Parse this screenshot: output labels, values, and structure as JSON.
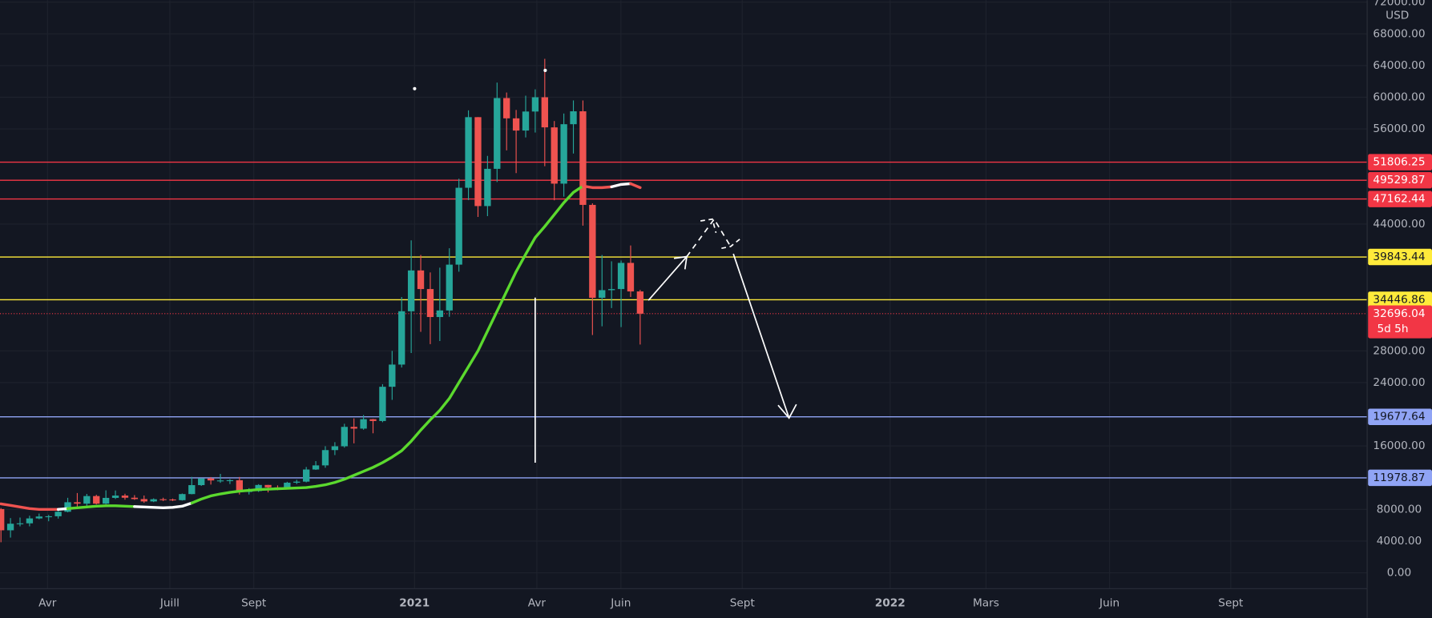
{
  "chart_data": {
    "type": "candlestick",
    "currency": "USD",
    "categories": [
      null,
      null,
      null,
      null,
      null,
      null,
      null,
      null,
      null,
      null,
      null,
      null,
      null,
      null,
      null,
      null,
      null,
      null,
      null,
      null,
      null,
      null,
      null,
      null,
      null,
      null,
      null,
      null,
      null,
      null,
      null,
      null,
      null,
      null,
      null,
      null,
      null,
      null,
      null,
      null,
      null,
      null,
      null,
      null,
      null,
      null,
      null,
      null,
      null,
      null,
      null,
      null,
      null,
      null,
      null,
      null,
      null,
      null,
      null,
      null,
      null,
      null,
      null,
      null,
      null,
      null,
      null,
      null
    ],
    "open": [
      8040,
      5360,
      6190,
      6240,
      6860,
      7100,
      7130,
      7700,
      8900,
      8720,
      9680,
      8720,
      9450,
      9740,
      9470,
      9300,
      9000,
      9280,
      9250,
      9160,
      9930,
      11060,
      11900,
      11650,
      11650,
      11680,
      10250,
      10310,
      11080,
      10780,
      10670,
      11370,
      11500,
      13030,
      13550,
      15480,
      15960,
      18410,
      18190,
      19380,
      19150,
      23470,
      26270,
      33000,
      38150,
      35800,
      32270,
      33100,
      38880,
      48580,
      57490,
      46270,
      50970,
      59900,
      57340,
      55800,
      58200,
      60000,
      56200,
      49100,
      56600,
      58230,
      46420,
      34700,
      35660,
      35800,
      39100,
      35500
    ],
    "high": [
      8170,
      6900,
      6970,
      7200,
      7470,
      7300,
      7800,
      9460,
      10060,
      9950,
      9840,
      10400,
      10380,
      9970,
      9800,
      9750,
      9390,
      9470,
      9360,
      10000,
      12100,
      11800,
      12080,
      12480,
      11820,
      12090,
      10680,
      11180,
      11090,
      11030,
      11480,
      11730,
      13350,
      14090,
      15970,
      16480,
      18800,
      19480,
      19900,
      19420,
      23800,
      28000,
      34800,
      41950,
      40100,
      37900,
      38500,
      40950,
      49720,
      58350,
      57500,
      52600,
      61850,
      60600,
      58400,
      60200,
      61000,
      64850,
      57000,
      57950,
      59600,
      59600,
      46620,
      40100,
      39300,
      39400,
      41300,
      35700
    ],
    "low": [
      3850,
      4440,
      5860,
      5860,
      6760,
      6500,
      6840,
      7630,
      8350,
      8200,
      8630,
      8650,
      9310,
      9220,
      9200,
      8830,
      8920,
      9050,
      9050,
      9110,
      9900,
      10960,
      11130,
      11350,
      11200,
      9880,
      9880,
      10200,
      10140,
      10420,
      10530,
      11200,
      11410,
      12980,
      13250,
      14850,
      15790,
      16330,
      18050,
      17600,
      19000,
      21820,
      25900,
      27730,
      30400,
      28850,
      29240,
      32300,
      37990,
      47020,
      44900,
      45000,
      49300,
      53300,
      50430,
      54930,
      55550,
      51300,
      47000,
      47460,
      52900,
      43800,
      30000,
      31100,
      33400,
      31000,
      34800,
      28800
    ],
    "close": [
      5360,
      6190,
      6240,
      6860,
      7100,
      7130,
      7700,
      8900,
      8720,
      9680,
      8720,
      9450,
      9740,
      9470,
      9300,
      9000,
      9280,
      9250,
      9160,
      9930,
      11060,
      11900,
      11650,
      11650,
      11680,
      10250,
      10310,
      11080,
      10780,
      10670,
      11370,
      11500,
      13030,
      13550,
      15480,
      15960,
      18410,
      18190,
      19380,
      19150,
      23470,
      26270,
      33000,
      38150,
      35800,
      32270,
      33100,
      38880,
      48580,
      57490,
      46270,
      50970,
      59900,
      57340,
      55800,
      58200,
      60000,
      56200,
      49100,
      56600,
      58230,
      46420,
      34700,
      35660,
      35800,
      39100,
      35500,
      32696.04
    ],
    "up_color": "#26a69a",
    "down_color": "#ef5350",
    "ma": [
      8700,
      8500,
      8300,
      8100,
      8000,
      8000,
      8000,
      8100,
      8200,
      8300,
      8400,
      8450,
      8450,
      8400,
      8350,
      8300,
      8250,
      8200,
      8250,
      8400,
      8800,
      9300,
      9700,
      9950,
      10150,
      10300,
      10400,
      10500,
      10550,
      10600,
      10650,
      10700,
      10750,
      10900,
      11100,
      11400,
      11800,
      12300,
      12800,
      13300,
      13900,
      14600,
      15400,
      16600,
      18000,
      19300,
      20500,
      22000,
      24000,
      26000,
      28000,
      30500,
      33000,
      35500,
      38000,
      40200,
      42300,
      43700,
      45200,
      46700,
      48000,
      48800,
      48600,
      48600,
      48700,
      49000,
      49100,
      48600
    ],
    "ma_segments": [
      {
        "from": 0,
        "to": 6,
        "color": "#ef5350"
      },
      {
        "from": 6,
        "to": 7,
        "color": "#ffffff"
      },
      {
        "from": 7,
        "to": 14,
        "color": "#5bd92e"
      },
      {
        "from": 14,
        "to": 20,
        "color": "#ffffff"
      },
      {
        "from": 20,
        "to": 61,
        "color": "#5bd92e"
      },
      {
        "from": 61,
        "to": 64,
        "color": "#ef5350"
      },
      {
        "from": 64,
        "to": 66,
        "color": "#ffffff"
      },
      {
        "from": 66,
        "to": 67,
        "color": "#ef5350"
      }
    ],
    "xlim": [
      -0.1,
      143.2
    ],
    "xticks": [
      {
        "value": 4.88,
        "label": "Avr"
      },
      {
        "value": 17.7,
        "label": "Juill"
      },
      {
        "value": 26.5,
        "label": "Sept"
      },
      {
        "value": 43.35,
        "label": "2021"
      },
      {
        "value": 56.17,
        "label": "Avr"
      },
      {
        "value": 64.98,
        "label": "Juin"
      },
      {
        "value": 77.7,
        "label": "Sept"
      },
      {
        "value": 93.2,
        "label": "2022"
      },
      {
        "value": 103.25,
        "label": "Mars"
      },
      {
        "value": 116.2,
        "label": "Juin"
      },
      {
        "value": 128.9,
        "label": "Sept"
      }
    ],
    "ylim": [
      -2000,
      72250
    ],
    "yticks": [
      {
        "value": 0,
        "label": "0.00"
      },
      {
        "value": 4000,
        "label": "4000.00"
      },
      {
        "value": 8000,
        "label": "8000.00"
      },
      {
        "value": 16000,
        "label": "16000.00"
      },
      {
        "value": 24000,
        "label": "24000.00"
      },
      {
        "value": 28000,
        "label": "28000.00"
      },
      {
        "value": 44000,
        "label": "44000.00"
      },
      {
        "value": 56000,
        "label": "56000.00"
      },
      {
        "value": 60000,
        "label": "60000.00"
      },
      {
        "value": 64000,
        "label": "64000.00"
      },
      {
        "value": 68000,
        "label": "68000.00"
      },
      {
        "value": 72000,
        "label": "72000.00"
      }
    ],
    "grid": true,
    "levels": [
      {
        "value": 51806.25,
        "color": "#f23645",
        "text_color": "#ffffff"
      },
      {
        "value": 49529.87,
        "color": "#f23645",
        "text_color": "#ffffff"
      },
      {
        "value": 47162.44,
        "color": "#f23645",
        "text_color": "#ffffff"
      },
      {
        "value": 39843.44,
        "color": "#ffeb3b",
        "text_color": "#131722"
      },
      {
        "value": 34446.86,
        "color": "#ffeb3b",
        "text_color": "#131722"
      },
      {
        "value": 19677.64,
        "color": "#90a4f5",
        "text_color": "#131722"
      },
      {
        "value": 11978.87,
        "color": "#90a4f5",
        "text_color": "#131722"
      }
    ],
    "current": {
      "value": 32696.04,
      "countdown": "5d 5h",
      "color": "#f23645"
    }
  }
}
